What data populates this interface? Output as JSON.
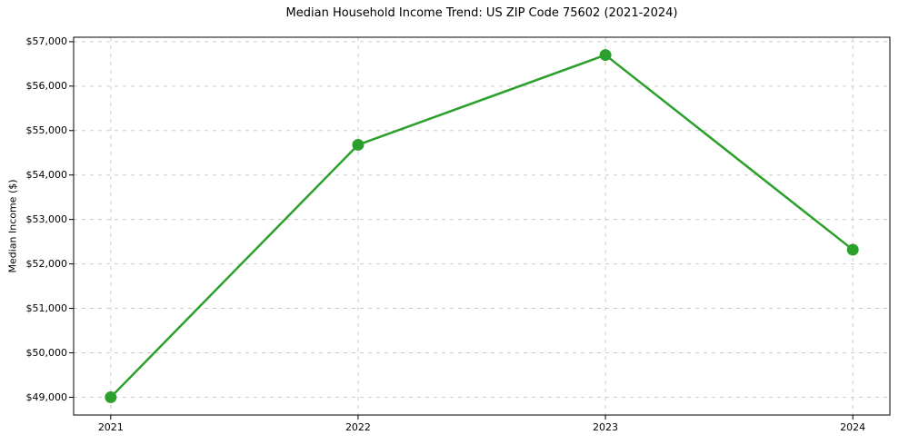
{
  "chart_data": {
    "type": "line",
    "title": "Median Household Income Trend: US ZIP Code 75602 (2021-2024)",
    "categories": [
      "2021",
      "2022",
      "2023",
      "2024"
    ],
    "values": [
      49000,
      54680,
      56700,
      52320
    ],
    "xlabel": "",
    "ylabel": "Median Income ($)",
    "ylim": [
      48600,
      57100
    ],
    "yticks": [
      49000,
      50000,
      51000,
      52000,
      53000,
      54000,
      55000,
      56000,
      57000
    ],
    "ytick_labels": [
      "$49,000",
      "$50,000",
      "$51,000",
      "$52,000",
      "$53,000",
      "$54,000",
      "$55,000",
      "$56,000",
      "$57,000"
    ],
    "grid": true,
    "grid_style": "dashed",
    "legend_position": "none",
    "colors": {
      "line": "#2ca02c",
      "marker": "#2ca02c",
      "grid": "#cccccc",
      "spine": "#000000",
      "text": "#000000",
      "background": "#ffffff"
    }
  }
}
